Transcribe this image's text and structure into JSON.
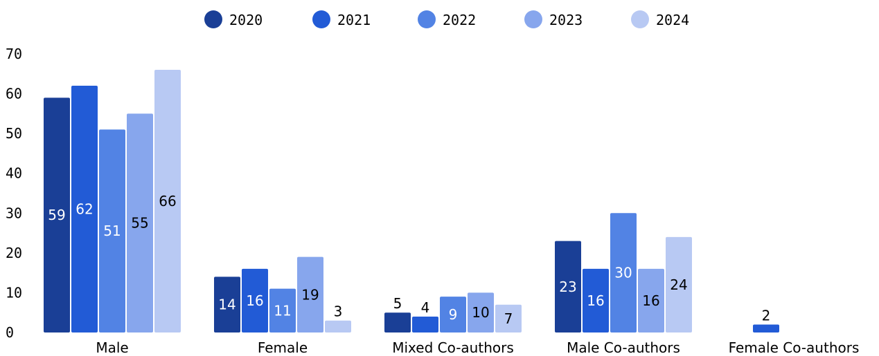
{
  "chart_data": {
    "type": "bar",
    "categories": [
      "Male",
      "Female",
      "Mixed Co-authors",
      "Male Co-authors",
      "Female Co-authors"
    ],
    "series": [
      {
        "name": "2020",
        "color": "#1a3f96",
        "values": [
          59,
          14,
          5,
          23,
          null
        ]
      },
      {
        "name": "2021",
        "color": "#225bd6",
        "values": [
          62,
          16,
          4,
          16,
          2
        ]
      },
      {
        "name": "2022",
        "color": "#5283e4",
        "values": [
          51,
          11,
          9,
          30,
          null
        ]
      },
      {
        "name": "2023",
        "color": "#87a6ed",
        "values": [
          55,
          19,
          10,
          16,
          null
        ]
      },
      {
        "name": "2024",
        "color": "#b8c9f3",
        "values": [
          66,
          3,
          7,
          24,
          null
        ]
      }
    ],
    "y_ticks": [
      "0",
      "10",
      "20",
      "30",
      "40",
      "50",
      "60",
      "70"
    ],
    "ylim": [
      0,
      70
    ],
    "grid": false,
    "legend_position": "top-center",
    "data_labels": true
  }
}
